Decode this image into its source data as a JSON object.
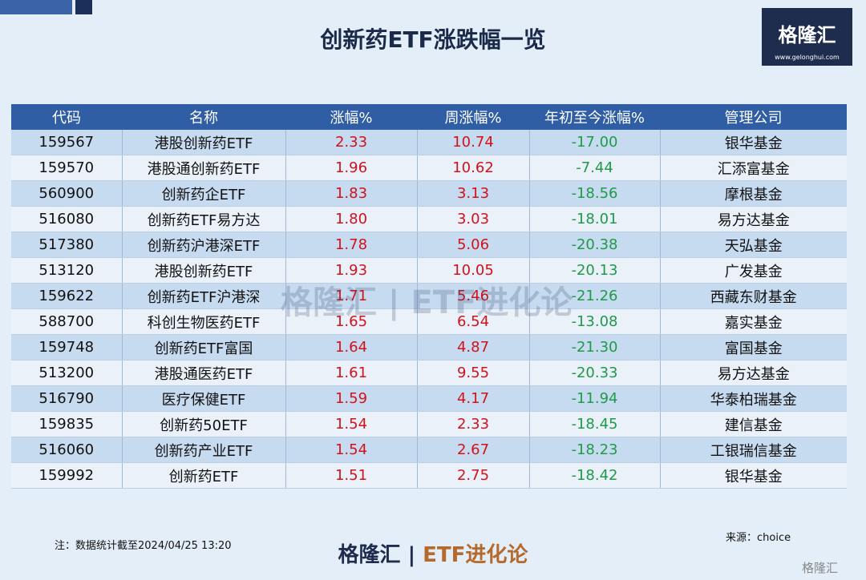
{
  "header": {
    "title": "创新药ETF涨跌幅一览",
    "logo": "格隆汇",
    "logo_url": "www.gelonghui.com"
  },
  "table": {
    "columns": [
      "代码",
      "名称",
      "涨幅%",
      "周涨幅%",
      "年初至今涨幅%",
      "管理公司"
    ],
    "rows": [
      [
        "159567",
        "港股创新药ETF",
        "2.33",
        "10.74",
        "-17.00",
        "银华基金"
      ],
      [
        "159570",
        "港股通创新药ETF",
        "1.96",
        "10.62",
        "-7.44",
        "汇添富基金"
      ],
      [
        "560900",
        "创新药企ETF",
        "1.83",
        "3.13",
        "-18.56",
        "摩根基金"
      ],
      [
        "516080",
        "创新药ETF易方达",
        "1.80",
        "3.03",
        "-18.01",
        "易方达基金"
      ],
      [
        "517380",
        "创新药沪港深ETF",
        "1.78",
        "5.06",
        "-20.38",
        "天弘基金"
      ],
      [
        "513120",
        "港股创新药ETF",
        "1.93",
        "10.05",
        "-20.13",
        "广发基金"
      ],
      [
        "159622",
        "创新药ETF沪港深",
        "1.71",
        "5.46",
        "-21.26",
        "西藏东财基金"
      ],
      [
        "588700",
        "科创生物医药ETF",
        "1.65",
        "6.54",
        "-13.08",
        "嘉实基金"
      ],
      [
        "159748",
        "创新药ETF富国",
        "1.64",
        "4.87",
        "-21.30",
        "富国基金"
      ],
      [
        "513200",
        "港股通医药ETF",
        "1.61",
        "9.55",
        "-20.33",
        "易方达基金"
      ],
      [
        "516790",
        "医疗保健ETF",
        "1.59",
        "4.17",
        "-11.94",
        "华泰柏瑞基金"
      ],
      [
        "159835",
        "创新药50ETF",
        "1.54",
        "2.33",
        "-18.45",
        "建信基金"
      ],
      [
        "516060",
        "创新药产业ETF",
        "1.54",
        "2.67",
        "-18.23",
        "工银瑞信基金"
      ],
      [
        "159992",
        "创新药ETF",
        "1.51",
        "2.75",
        "-18.42",
        "银华基金"
      ]
    ]
  },
  "watermark": {
    "brand": "格隆汇",
    "name": "ETF进化论"
  },
  "footer": {
    "note": "注：数据统计截至2024/04/25 13:20",
    "source": "来源：choice",
    "brand": "格隆汇",
    "name": "ETF进化论",
    "corner": "格隆汇"
  }
}
